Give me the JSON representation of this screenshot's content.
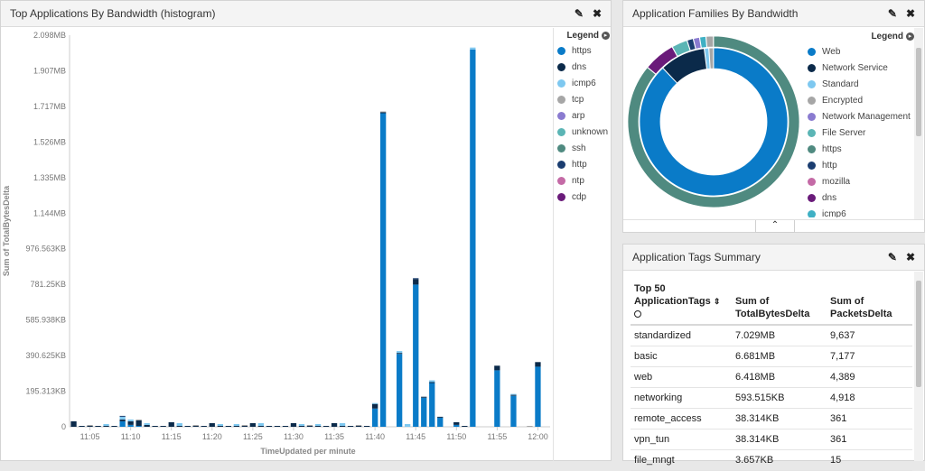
{
  "histogram_panel": {
    "title": "Top Applications By Bandwidth (histogram)",
    "legend_title": "Legend",
    "legend": [
      {
        "name": "https",
        "color": "#0a7bc8"
      },
      {
        "name": "dns",
        "color": "#0b2a4a"
      },
      {
        "name": "icmp6",
        "color": "#7ec8f0"
      },
      {
        "name": "tcp",
        "color": "#a6a6a6"
      },
      {
        "name": "arp",
        "color": "#8a7bd0"
      },
      {
        "name": "unknown",
        "color": "#5bb5b5"
      },
      {
        "name": "ssh",
        "color": "#4f8a80"
      },
      {
        "name": "http",
        "color": "#1a3d70"
      },
      {
        "name": "ntp",
        "color": "#c46aa6"
      },
      {
        "name": "cdp",
        "color": "#6a1b7a"
      }
    ]
  },
  "chart_data": {
    "type": "bar",
    "stacked": true,
    "ylabel": "Sum of TotalBytesDelta",
    "xlabel": "TimeUpdated per minute",
    "y_ticks": [
      "0",
      "195.313KB",
      "390.625KB",
      "585.938KB",
      "781.25KB",
      "976.563KB",
      "1.144MB",
      "1.335MB",
      "1.526MB",
      "1.717MB",
      "1.907MB",
      "2.098MB"
    ],
    "ylim_kb": [
      0,
      2148
    ],
    "x_ticks": [
      "11:05",
      "11:10",
      "11:15",
      "11:20",
      "11:25",
      "11:30",
      "11:35",
      "11:40",
      "11:45",
      "11:50",
      "11:55",
      "12:00"
    ],
    "x": [
      "11:03",
      "11:04",
      "11:05",
      "11:06",
      "11:07",
      "11:08",
      "11:09",
      "11:10",
      "11:11",
      "11:12",
      "11:13",
      "11:14",
      "11:15",
      "11:16",
      "11:17",
      "11:18",
      "11:19",
      "11:20",
      "11:21",
      "11:22",
      "11:23",
      "11:24",
      "11:25",
      "11:26",
      "11:27",
      "11:28",
      "11:29",
      "11:30",
      "11:31",
      "11:32",
      "11:33",
      "11:34",
      "11:35",
      "11:36",
      "11:37",
      "11:38",
      "11:39",
      "11:40",
      "11:41",
      "11:42",
      "11:43",
      "11:44",
      "11:45",
      "11:46",
      "11:47",
      "11:48",
      "11:49",
      "11:50",
      "11:51",
      "11:52",
      "11:53",
      "11:54",
      "11:55",
      "11:56",
      "11:57",
      "11:58",
      "11:59",
      "12:00",
      "12:01"
    ],
    "series": [
      {
        "name": "https",
        "values": [
          0,
          0,
          0,
          0,
          0,
          0,
          30,
          10,
          5,
          0,
          0,
          0,
          0,
          0,
          0,
          0,
          0,
          0,
          0,
          0,
          0,
          0,
          0,
          0,
          0,
          0,
          0,
          0,
          0,
          0,
          0,
          0,
          0,
          0,
          0,
          0,
          0,
          100,
          1720,
          0,
          400,
          0,
          780,
          160,
          240,
          50,
          0,
          10,
          0,
          2070,
          0,
          0,
          310,
          0,
          170,
          0,
          0,
          330,
          0
        ]
      },
      {
        "name": "dns",
        "values": [
          30,
          5,
          5,
          5,
          5,
          5,
          10,
          20,
          30,
          10,
          5,
          5,
          25,
          5,
          5,
          5,
          5,
          20,
          5,
          5,
          5,
          5,
          20,
          5,
          5,
          5,
          5,
          20,
          5,
          5,
          5,
          5,
          20,
          5,
          5,
          5,
          5,
          25,
          5,
          0,
          5,
          0,
          30,
          5,
          5,
          5,
          0,
          15,
          5,
          0,
          0,
          0,
          25,
          0,
          5,
          0,
          0,
          25,
          0
        ]
      },
      {
        "name": "icmp6",
        "values": [
          0,
          0,
          0,
          0,
          10,
          0,
          15,
          10,
          0,
          10,
          0,
          0,
          0,
          15,
          0,
          0,
          0,
          0,
          10,
          0,
          10,
          0,
          0,
          15,
          0,
          0,
          0,
          0,
          10,
          0,
          10,
          0,
          0,
          15,
          0,
          0,
          0,
          5,
          0,
          0,
          10,
          15,
          0,
          0,
          10,
          0,
          0,
          0,
          0,
          10,
          0,
          0,
          0,
          0,
          5,
          0,
          0,
          0,
          0
        ]
      },
      {
        "name": "tcp",
        "values": [
          0,
          0,
          5,
          0,
          0,
          0,
          0,
          0,
          5,
          0,
          0,
          0,
          0,
          0,
          0,
          5,
          0,
          0,
          0,
          0,
          0,
          5,
          0,
          0,
          0,
          0,
          0,
          0,
          0,
          5,
          0,
          0,
          0,
          0,
          0,
          5,
          0,
          0,
          5,
          0,
          0,
          0,
          0,
          0,
          0,
          0,
          0,
          0,
          0,
          0,
          0,
          0,
          0,
          0,
          0,
          0,
          5,
          0,
          0
        ]
      },
      {
        "name": "http",
        "values": [
          0,
          0,
          0,
          0,
          0,
          0,
          5,
          0,
          0,
          0,
          0,
          0,
          0,
          0,
          0,
          0,
          0,
          0,
          0,
          0,
          0,
          0,
          0,
          0,
          0,
          0,
          0,
          0,
          0,
          0,
          0,
          0,
          0,
          0,
          0,
          0,
          0,
          0,
          0,
          0,
          0,
          0,
          5,
          0,
          0,
          0,
          0,
          0,
          0,
          0,
          0,
          0,
          0,
          0,
          0,
          0,
          0,
          0,
          0
        ]
      }
    ]
  },
  "families_panel": {
    "title": "Application Families By Bandwidth",
    "legend_title": "Legend",
    "legend": [
      {
        "name": "Web",
        "color": "#0a7bc8"
      },
      {
        "name": "Network Service",
        "color": "#0b2a4a"
      },
      {
        "name": "Standard",
        "color": "#7ec8f0"
      },
      {
        "name": "Encrypted",
        "color": "#a6a6a6"
      },
      {
        "name": "Network Management",
        "color": "#8a7bd0"
      },
      {
        "name": "File Server",
        "color": "#5bb5b5"
      },
      {
        "name": "https",
        "color": "#4f8a80"
      },
      {
        "name": "http",
        "color": "#1a3d70"
      },
      {
        "name": "mozilla",
        "color": "#c46aa6"
      },
      {
        "name": "dns",
        "color": "#6a1b7a"
      },
      {
        "name": "icmp6",
        "color": "#3fb0c4"
      }
    ],
    "inner_ring": [
      {
        "name": "Web",
        "value": 88,
        "color": "#0a7bc8"
      },
      {
        "name": "Network Service",
        "value": 10,
        "color": "#0b2a4a"
      },
      {
        "name": "Standard",
        "value": 1,
        "color": "#7ec8f0"
      },
      {
        "name": "Encrypted",
        "value": 1,
        "color": "#a6a6a6"
      }
    ],
    "outer_ring": [
      {
        "name": "https",
        "value": 86,
        "color": "#4f8a80"
      },
      {
        "name": "dns",
        "value": 6,
        "color": "#6a1b7a"
      },
      {
        "name": "File Server",
        "value": 3,
        "color": "#5bb5b5"
      },
      {
        "name": "http",
        "value": 1.2,
        "color": "#1a3d70"
      },
      {
        "name": "Network Management",
        "value": 1.2,
        "color": "#8a7bd0"
      },
      {
        "name": "icmp6",
        "value": 1.2,
        "color": "#3fb0c4"
      },
      {
        "name": "Encrypted",
        "value": 1.4,
        "color": "#a6a6a6"
      }
    ]
  },
  "tags_panel": {
    "title": "Application Tags Summary",
    "columns": [
      {
        "line1": "Top 50",
        "line2": "ApplicationTags"
      },
      {
        "line1": "Sum of",
        "line2": "TotalBytesDelta"
      },
      {
        "line1": "Sum of",
        "line2": "PacketsDelta"
      }
    ],
    "rows": [
      {
        "tag": "standardized",
        "bytes": "7.029MB",
        "packets": "9,637"
      },
      {
        "tag": "basic",
        "bytes": "6.681MB",
        "packets": "7,177"
      },
      {
        "tag": "web",
        "bytes": "6.418MB",
        "packets": "4,389"
      },
      {
        "tag": "networking",
        "bytes": "593.515KB",
        "packets": "4,918"
      },
      {
        "tag": "remote_access",
        "bytes": "38.314KB",
        "packets": "361"
      },
      {
        "tag": "vpn_tun",
        "bytes": "38.314KB",
        "packets": "361"
      },
      {
        "tag": "file_mngt",
        "bytes": "3.657KB",
        "packets": "15"
      }
    ]
  }
}
